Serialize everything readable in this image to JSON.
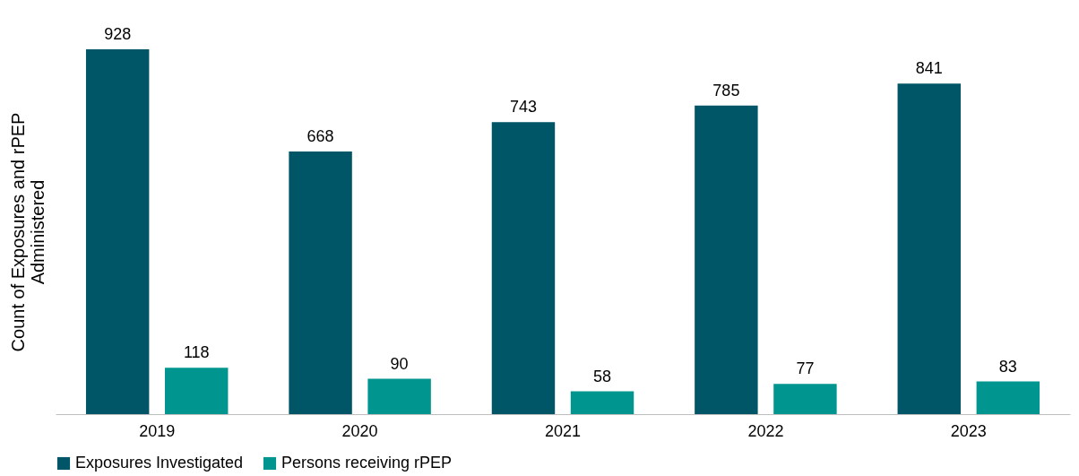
{
  "chart_data": {
    "type": "bar",
    "ylabel": "Count of Exposures and rPEP Administered",
    "categories": [
      "2019",
      "2020",
      "2021",
      "2022",
      "2023"
    ],
    "series": [
      {
        "name": "Exposures Investigated",
        "color": "#005566",
        "values": [
          928,
          668,
          743,
          785,
          841
        ]
      },
      {
        "name": "Persons receiving rPEP",
        "color": "#00968f",
        "values": [
          118,
          90,
          58,
          77,
          83
        ]
      }
    ],
    "data_labels": true,
    "tick_labels": "x",
    "grid": false,
    "legend": "bottom"
  }
}
